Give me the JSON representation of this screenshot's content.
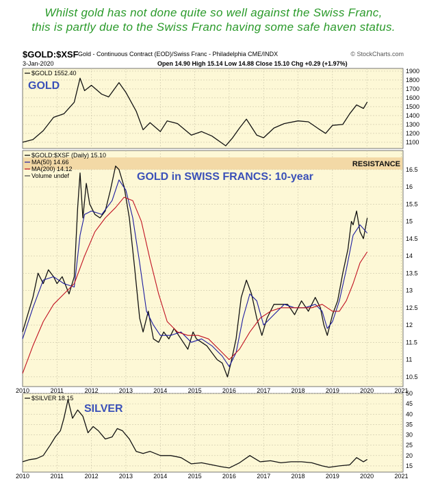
{
  "headline": {
    "line1": "Whilst gold has not done quite so well against the Swiss Franc,",
    "line2": "this is partly due to the Swiss Franc having some safe haven status."
  },
  "header": {
    "symbol": "$GOLD:$XSF",
    "description": "Gold - Continuous Contract (EOD)/Swiss Franc - Philadelphia  CME/INDX",
    "source": "© StockCharts.com",
    "date": "3-Jan-2020",
    "quote": "Open 14.90  High 15.14  Low 14.88  Close 15.10  Chg +0.29 (+1.97%)"
  },
  "colors": {
    "panel_bg": "#fdf8d6",
    "price_line": "#111111",
    "ma50": "#1a1aa0",
    "ma200": "#c01020",
    "resistance_band": "#f3d9a6",
    "annotation_text": "#3a50b8",
    "headline_text": "#2a9a2a"
  },
  "chart_data": [
    {
      "type": "line",
      "panel": "top",
      "legend": "$GOLD 1552.40",
      "annotation": "GOLD",
      "ylim": [
        1030,
        1930
      ],
      "y_ticks": [
        1100,
        1200,
        1300,
        1400,
        1500,
        1600,
        1700,
        1800,
        1900
      ],
      "x_ticks": [
        "2010",
        "2011",
        "2012",
        "2013",
        "2014",
        "2015",
        "2016",
        "2017",
        "2018",
        "2019",
        "2020",
        "2021"
      ],
      "series": [
        {
          "name": "$GOLD",
          "x": [
            2010.0,
            2010.3,
            2010.6,
            2010.9,
            2011.2,
            2011.5,
            2011.67,
            2011.8,
            2012.0,
            2012.3,
            2012.5,
            2012.8,
            2013.0,
            2013.3,
            2013.5,
            2013.7,
            2014.0,
            2014.2,
            2014.5,
            2014.9,
            2015.2,
            2015.5,
            2015.9,
            2016.1,
            2016.3,
            2016.5,
            2016.8,
            2017.0,
            2017.3,
            2017.6,
            2018.0,
            2018.3,
            2018.6,
            2018.8,
            2019.0,
            2019.3,
            2019.5,
            2019.7,
            2019.9,
            2020.01
          ],
          "values": [
            1100,
            1130,
            1230,
            1380,
            1420,
            1550,
            1820,
            1680,
            1740,
            1640,
            1610,
            1770,
            1660,
            1450,
            1240,
            1320,
            1220,
            1340,
            1310,
            1180,
            1220,
            1170,
            1060,
            1150,
            1260,
            1360,
            1180,
            1150,
            1260,
            1310,
            1340,
            1330,
            1250,
            1200,
            1290,
            1300,
            1420,
            1520,
            1480,
            1552
          ]
        }
      ]
    },
    {
      "type": "line",
      "panel": "main",
      "legend": [
        "$GOLD:$XSF (Daily) 15.10",
        "MA(50) 14.66",
        "MA(200) 14.12",
        "Volume undef"
      ],
      "title": "GOLD in SWISS FRANCS: 10-year",
      "annotations": [
        "RESISTANCE"
      ],
      "resistance_band": [
        16.5,
        16.85
      ],
      "ylim": [
        10.22,
        17.05
      ],
      "y_ticks": [
        10.5,
        11.0,
        11.5,
        12.0,
        12.5,
        13.0,
        13.5,
        14.0,
        14.5,
        15.0,
        15.5,
        16.0,
        16.5
      ],
      "x_ticks": [
        "2010",
        "2011",
        "2012",
        "2013",
        "2014",
        "2015",
        "2016",
        "2017",
        "2018",
        "2019",
        "2020",
        "2021"
      ],
      "series": [
        {
          "name": "$GOLD:$XSF",
          "x": [
            2010.0,
            2010.15,
            2010.3,
            2010.45,
            2010.6,
            2010.75,
            2010.9,
            2011.0,
            2011.15,
            2011.35,
            2011.5,
            2011.6,
            2011.67,
            2011.75,
            2011.85,
            2011.95,
            2012.1,
            2012.25,
            2012.4,
            2012.55,
            2012.7,
            2012.8,
            2012.95,
            2013.1,
            2013.25,
            2013.4,
            2013.5,
            2013.65,
            2013.8,
            2013.95,
            2014.1,
            2014.25,
            2014.4,
            2014.6,
            2014.8,
            2014.95,
            2015.05,
            2015.2,
            2015.35,
            2015.5,
            2015.65,
            2015.8,
            2015.95,
            2016.05,
            2016.2,
            2016.35,
            2016.5,
            2016.65,
            2016.8,
            2016.95,
            2017.1,
            2017.3,
            2017.5,
            2017.7,
            2017.9,
            2018.1,
            2018.3,
            2018.5,
            2018.65,
            2018.75,
            2018.85,
            2019.0,
            2019.15,
            2019.3,
            2019.45,
            2019.55,
            2019.6,
            2019.7,
            2019.8,
            2019.9,
            2020.01
          ],
          "values": [
            11.8,
            12.3,
            12.8,
            13.5,
            13.2,
            13.6,
            13.4,
            13.2,
            13.4,
            12.9,
            13.4,
            15.4,
            16.4,
            15.1,
            16.1,
            15.5,
            15.2,
            15.1,
            15.3,
            15.9,
            16.6,
            16.5,
            16.0,
            15.1,
            13.7,
            12.2,
            11.8,
            12.4,
            11.6,
            11.5,
            11.8,
            11.6,
            11.9,
            11.6,
            11.3,
            11.8,
            11.6,
            11.5,
            11.4,
            11.2,
            11.0,
            10.9,
            10.5,
            10.9,
            11.6,
            12.8,
            13.3,
            12.9,
            12.2,
            11.7,
            12.2,
            12.6,
            12.6,
            12.6,
            12.3,
            12.7,
            12.4,
            12.8,
            12.5,
            12.0,
            11.7,
            12.3,
            12.7,
            13.5,
            14.2,
            15.0,
            14.9,
            15.3,
            14.7,
            14.5,
            15.1
          ]
        },
        {
          "name": "MA(50)",
          "x": [
            2010.0,
            2010.3,
            2010.6,
            2010.9,
            2011.2,
            2011.5,
            2011.67,
            2011.8,
            2012.0,
            2012.3,
            2012.6,
            2012.8,
            2013.0,
            2013.2,
            2013.4,
            2013.6,
            2013.8,
            2014.0,
            2014.3,
            2014.6,
            2014.9,
            2015.2,
            2015.5,
            2015.8,
            2016.0,
            2016.2,
            2016.4,
            2016.6,
            2016.8,
            2017.0,
            2017.3,
            2017.6,
            2017.9,
            2018.2,
            2018.5,
            2018.7,
            2018.85,
            2019.0,
            2019.2,
            2019.4,
            2019.6,
            2019.8,
            2020.01
          ],
          "values": [
            11.6,
            12.5,
            13.3,
            13.4,
            13.2,
            13.1,
            14.6,
            15.2,
            15.3,
            15.2,
            15.6,
            16.2,
            15.9,
            15.1,
            13.8,
            12.4,
            12.0,
            11.7,
            11.7,
            11.8,
            11.5,
            11.6,
            11.4,
            11.1,
            10.8,
            11.2,
            12.2,
            12.9,
            12.7,
            12.0,
            12.3,
            12.6,
            12.5,
            12.5,
            12.6,
            12.4,
            11.9,
            12.1,
            12.7,
            13.6,
            14.6,
            14.9,
            14.66
          ]
        },
        {
          "name": "MA(200)",
          "x": [
            2010.0,
            2010.3,
            2010.6,
            2010.9,
            2011.2,
            2011.5,
            2011.8,
            2012.1,
            2012.4,
            2012.7,
            2012.95,
            2013.2,
            2013.45,
            2013.7,
            2013.95,
            2014.2,
            2014.5,
            2014.8,
            2015.1,
            2015.4,
            2015.7,
            2016.0,
            2016.3,
            2016.6,
            2016.9,
            2017.2,
            2017.5,
            2017.8,
            2018.1,
            2018.4,
            2018.7,
            2019.0,
            2019.2,
            2019.4,
            2019.6,
            2019.8,
            2020.01
          ],
          "values": [
            10.6,
            11.4,
            12.1,
            12.6,
            12.9,
            13.2,
            14.0,
            14.7,
            15.1,
            15.4,
            15.7,
            15.6,
            15.0,
            13.9,
            12.9,
            12.1,
            11.8,
            11.7,
            11.7,
            11.6,
            11.3,
            11.0,
            11.3,
            11.8,
            12.2,
            12.4,
            12.5,
            12.5,
            12.5,
            12.5,
            12.6,
            12.4,
            12.4,
            12.7,
            13.2,
            13.8,
            14.12
          ]
        }
      ]
    },
    {
      "type": "line",
      "panel": "bottom",
      "legend": "$SILVER 18.15",
      "annotation": "SILVER",
      "ylim": [
        12,
        50
      ],
      "y_ticks": [
        15,
        20,
        25,
        30,
        35,
        40,
        45,
        50
      ],
      "x_ticks": [
        "2010",
        "2011",
        "2012",
        "2013",
        "2014",
        "2015",
        "2016",
        "2017",
        "2018",
        "2019",
        "2020",
        "2021"
      ],
      "series": [
        {
          "name": "$SILVER",
          "x": [
            2010.0,
            2010.2,
            2010.4,
            2010.6,
            2010.8,
            2010.95,
            2011.1,
            2011.2,
            2011.32,
            2011.45,
            2011.6,
            2011.75,
            2011.9,
            2012.05,
            2012.2,
            2012.4,
            2012.6,
            2012.75,
            2012.9,
            2013.1,
            2013.3,
            2013.5,
            2013.7,
            2014.0,
            2014.3,
            2014.6,
            2014.9,
            2015.2,
            2015.5,
            2015.8,
            2016.0,
            2016.3,
            2016.6,
            2016.9,
            2017.2,
            2017.5,
            2017.8,
            2018.1,
            2018.4,
            2018.7,
            2018.9,
            2019.2,
            2019.5,
            2019.7,
            2019.9,
            2020.01
          ],
          "values": [
            17,
            18,
            18.5,
            20,
            25,
            29,
            32,
            38,
            47,
            38,
            42,
            39,
            31,
            34,
            32,
            28,
            29,
            33,
            32,
            28,
            22,
            21,
            22,
            20,
            20,
            19,
            16,
            16.5,
            15.5,
            14.5,
            14.0,
            16.5,
            20.0,
            17.0,
            17.5,
            16.5,
            17.0,
            17.0,
            16.5,
            15.0,
            14.3,
            15.0,
            15.5,
            19.0,
            17.0,
            18.15
          ]
        }
      ]
    }
  ]
}
